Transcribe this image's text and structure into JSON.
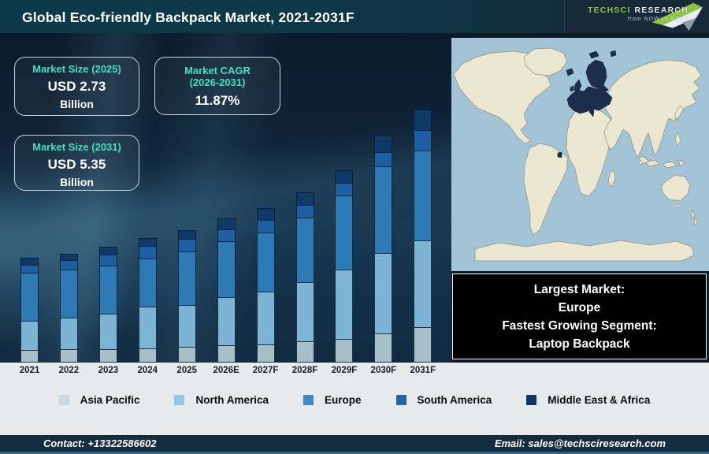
{
  "header": {
    "title": "Global Eco-friendly Backpack Market, 2021-2031F",
    "logo": {
      "brand_primary": "TechSci",
      "brand_secondary": "Research",
      "tagline": "from NOW to NEXT",
      "brand_green": "#8dc63f"
    }
  },
  "stat_boxes": [
    {
      "label": "Market Size (2025)",
      "value": "USD 2.73",
      "unit": "Billion"
    },
    {
      "label": "Market CAGR",
      "label2": "(2026-2031)",
      "value": "11.87%"
    },
    {
      "label": "Market Size (2031)",
      "value": "USD 5.35",
      "unit": "Billion"
    }
  ],
  "chart_data": {
    "type": "bar",
    "stacked": true,
    "title": "Global Eco-friendly Backpack Market, 2021-2031F",
    "unit": "USD Billion (values estimated from bar heights)",
    "categories": [
      "2021",
      "2022",
      "2023",
      "2024",
      "2025",
      "2026E",
      "2027F",
      "2028F",
      "2029F",
      "2030F",
      "2031F"
    ],
    "series": [
      {
        "name": "Asia Pacific",
        "color": "#a7bfc9",
        "legend_color": "#c6d9e2",
        "values": [
          0.25,
          0.26,
          0.27,
          0.29,
          0.31,
          0.34,
          0.36,
          0.42,
          0.47,
          0.58,
          0.71
        ]
      },
      {
        "name": "North America",
        "color": "#7db3d4",
        "legend_color": "#92c7e4",
        "values": [
          0.59,
          0.65,
          0.72,
          0.84,
          0.85,
          0.97,
          1.07,
          1.19,
          1.39,
          1.62,
          1.74
        ]
      },
      {
        "name": "Europe",
        "color": "#2e7ab6",
        "legend_color": "#3f88c3",
        "values": [
          0.97,
          0.98,
          0.97,
          0.97,
          1.09,
          1.13,
          1.19,
          1.31,
          1.49,
          1.74,
          1.81
        ]
      },
      {
        "name": "South America",
        "color": "#1e5fa4",
        "legend_color": "#2162a9",
        "values": [
          0.18,
          0.21,
          0.24,
          0.26,
          0.26,
          0.25,
          0.26,
          0.26,
          0.26,
          0.3,
          0.42
        ]
      },
      {
        "name": "Middle East & Africa",
        "color": "#0d3a66",
        "legend_color": "#0f3562",
        "values": [
          0.15,
          0.14,
          0.18,
          0.18,
          0.19,
          0.24,
          0.25,
          0.26,
          0.26,
          0.34,
          0.42
        ]
      }
    ],
    "totals_estimated": [
      2.14,
      2.24,
      2.38,
      2.54,
      2.7,
      2.93,
      3.13,
      3.44,
      3.87,
      4.58,
      5.1
    ],
    "annotations": {
      "market_size_2025": "USD 2.73 Billion",
      "market_size_2031": "USD 5.35 Billion",
      "cagr_2026_2031": "11.87%"
    },
    "legend_position": "bottom",
    "axes_hidden": true,
    "ylim_estimated_billion": [
      0,
      6.5
    ]
  },
  "map": {
    "highlighted_region": "Europe",
    "ocean_color": "#a3c3d6",
    "land_color": "#ece7d0",
    "highlight_color": "#1b2f4d"
  },
  "callout": {
    "lines": [
      "Largest Market:",
      "Europe",
      "Fastest Growing Segment:",
      "Laptop Backpack"
    ]
  },
  "footer": {
    "contact": "Contact: +13322586602",
    "email": "Email: sales@techsciresearch.com"
  }
}
